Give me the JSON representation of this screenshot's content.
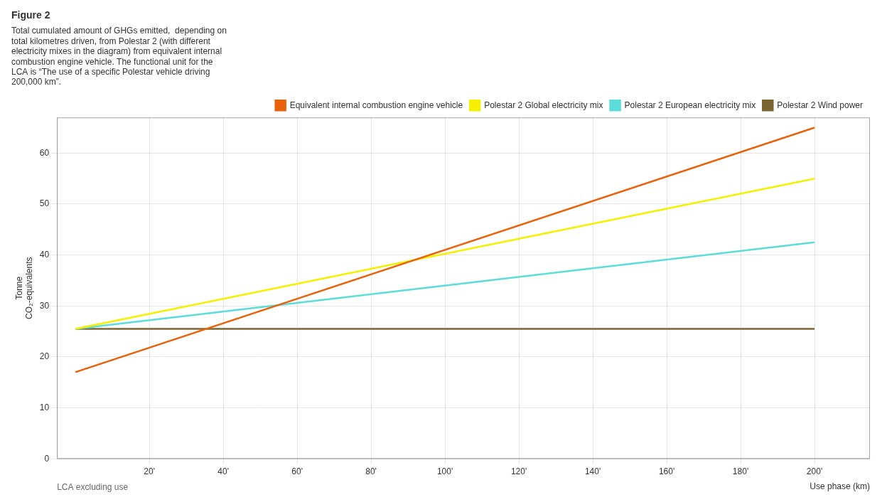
{
  "chart_data": {
    "type": "line",
    "title": "Figure 2",
    "annotation": "Total cumulated amount of GHGs emitted,  depending on\ntotal kilometres driven, from Polestar 2 (with different\nelectricity mixes in the diagram) from equivalent internal\ncombustion engine vehicle. The functional unit for the\nLCA is “The use of a specific Polestar vehicle driving\n200,000 km”.",
    "ylabel": "Tonne\nCO₂-equivalents",
    "xlabel": "Use phase (km)",
    "xlabel_left": "LCA excluding use",
    "x": [
      0,
      200000
    ],
    "series": [
      {
        "name": "Equivalent internal combustion engine vehicle",
        "color": "#E8620A",
        "values": [
          17.0,
          65.0
        ]
      },
      {
        "name": "Polestar 2 Global electricity mix",
        "color": "#F5F000",
        "values": [
          25.5,
          55.0
        ]
      },
      {
        "name": "Polestar 2 European electricity mix",
        "color": "#5DDCDC",
        "values": [
          25.5,
          42.5
        ]
      },
      {
        "name": "Polestar 2 Wind power",
        "color": "#7B6530",
        "values": [
          25.5,
          25.5
        ]
      }
    ],
    "xlim": [
      -5000,
      215000
    ],
    "xticks": [
      {
        "value": 20000,
        "label": "20'"
      },
      {
        "value": 40000,
        "label": "40'"
      },
      {
        "value": 60000,
        "label": "60'"
      },
      {
        "value": 80000,
        "label": "80'"
      },
      {
        "value": 100000,
        "label": "100'"
      },
      {
        "value": 120000,
        "label": "120'"
      },
      {
        "value": 140000,
        "label": "140'"
      },
      {
        "value": 160000,
        "label": "160'"
      },
      {
        "value": 180000,
        "label": "180'"
      },
      {
        "value": 200000,
        "label": "200'"
      }
    ],
    "ylim": [
      0,
      67
    ],
    "yticks": [
      0,
      10,
      20,
      30,
      40,
      50,
      60
    ],
    "grid": true,
    "legend": "top"
  }
}
